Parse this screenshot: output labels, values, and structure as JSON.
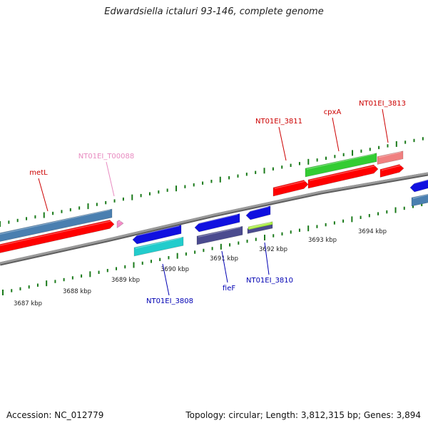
{
  "header": {
    "title": "Edwardsiella ictaluri 93-146, complete genome"
  },
  "footer": {
    "accession": "Accession: NC_012779",
    "summary": "Topology: circular; Length: 3,812,315 bp; Genes: 3,894"
  },
  "colors": {
    "backbone": "#8a8a8a",
    "tick": "#1a7a1a",
    "forward_label": "#cc0000",
    "reverse_label": "#0000b3",
    "trna_label": "#e88ac0",
    "cds_red": "#ff0000",
    "cds_blue": "#1010e0",
    "steel_blue": "#4a7fb0",
    "green": "#33cc33",
    "salmon": "#f08080",
    "cyan": "#22cccc",
    "slate": "#4b4b8f",
    "pink": "#f58cc8",
    "lime": "#aaee44"
  },
  "scale_labels": [
    "3687 kbp",
    "3688 kbp",
    "3689 kbp",
    "3690 kbp",
    "3691 kbp",
    "3692 kbp",
    "3693 kbp",
    "3694 kbp"
  ],
  "gene_labels": [
    {
      "text": "metL",
      "strand": "forward"
    },
    {
      "text": "NT01EI_T00088",
      "strand": "trna"
    },
    {
      "text": "NT01EI_3811",
      "strand": "forward"
    },
    {
      "text": "cpxA",
      "strand": "forward"
    },
    {
      "text": "NT01EI_3813",
      "strand": "forward"
    },
    {
      "text": "NT01EI_3808",
      "strand": "reverse"
    },
    {
      "text": "fieF",
      "strand": "reverse"
    },
    {
      "text": "NT01EI_3810",
      "strand": "reverse"
    }
  ]
}
